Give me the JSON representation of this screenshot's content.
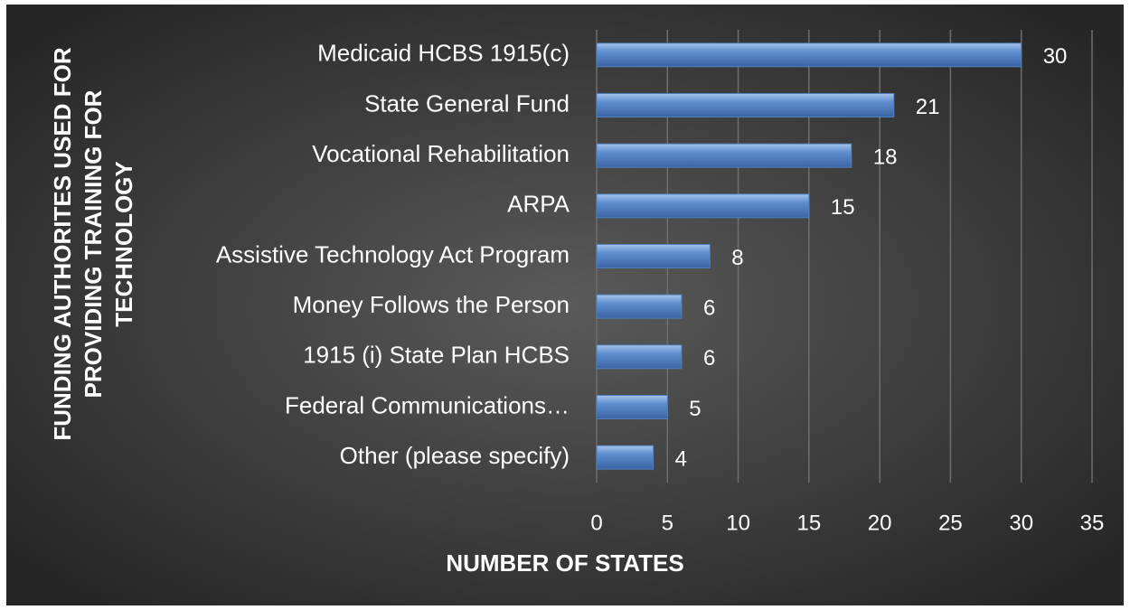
{
  "chart_data": {
    "type": "hbar",
    "ylabel_lines": [
      "FUNDING AUTHORITES USED FOR",
      "PROVIDING TRAINING FOR",
      "TECHNOLOGY"
    ],
    "xlabel": "NUMBER OF STATES",
    "categories": [
      "Medicaid HCBS 1915(c)",
      "State General Fund",
      "Vocational Rehabilitation",
      "ARPA",
      "Assistive Technology Act Program",
      "Money Follows the Person",
      "1915 (i) State Plan HCBS",
      "Federal Communications…",
      "Other (please specify)"
    ],
    "values": [
      30,
      21,
      18,
      15,
      8,
      6,
      6,
      5,
      4
    ],
    "color": "#4f81bd",
    "xlim": [
      0,
      35
    ],
    "xticks": [
      0,
      5,
      10,
      15,
      20,
      25,
      30,
      35
    ],
    "grid": true
  }
}
